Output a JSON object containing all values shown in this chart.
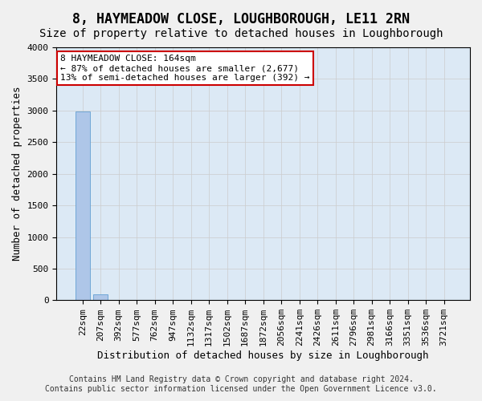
{
  "title": "8, HAYMEADOW CLOSE, LOUGHBOROUGH, LE11 2RN",
  "subtitle": "Size of property relative to detached houses in Loughborough",
  "xlabel": "Distribution of detached houses by size in Loughborough",
  "ylabel": "Number of detached properties",
  "footer_line1": "Contains HM Land Registry data © Crown copyright and database right 2024.",
  "footer_line2": "Contains public sector information licensed under the Open Government Licence v3.0.",
  "annotation_line1": "8 HAYMEADOW CLOSE: 164sqm",
  "annotation_line2": "← 87% of detached houses are smaller (2,677)",
  "annotation_line3": "13% of semi-detached houses are larger (392) →",
  "bar_labels": [
    "22sqm",
    "207sqm",
    "392sqm",
    "577sqm",
    "762sqm",
    "947sqm",
    "1132sqm",
    "1317sqm",
    "1502sqm",
    "1687sqm",
    "1872sqm",
    "2056sqm",
    "2241sqm",
    "2426sqm",
    "2611sqm",
    "2796sqm",
    "2981sqm",
    "3166sqm",
    "3351sqm",
    "3536sqm",
    "3721sqm"
  ],
  "bar_heights": [
    2980,
    100,
    0,
    0,
    0,
    0,
    0,
    0,
    0,
    0,
    0,
    0,
    0,
    0,
    0,
    0,
    0,
    0,
    0,
    0,
    0
  ],
  "bar_color": "#aec6e8",
  "bar_edge_color": "#4f94cd",
  "ylim": [
    0,
    4000
  ],
  "yticks": [
    0,
    500,
    1000,
    1500,
    2000,
    2500,
    3000,
    3500,
    4000
  ],
  "grid_color": "#cccccc",
  "bg_color": "#dce9f5",
  "fig_bg_color": "#f0f0f0",
  "annotation_box_color": "#ffffff",
  "annotation_box_edge_color": "#cc0000",
  "title_fontsize": 12,
  "subtitle_fontsize": 10,
  "axis_label_fontsize": 9,
  "tick_fontsize": 8,
  "annotation_fontsize": 8,
  "footer_fontsize": 7
}
